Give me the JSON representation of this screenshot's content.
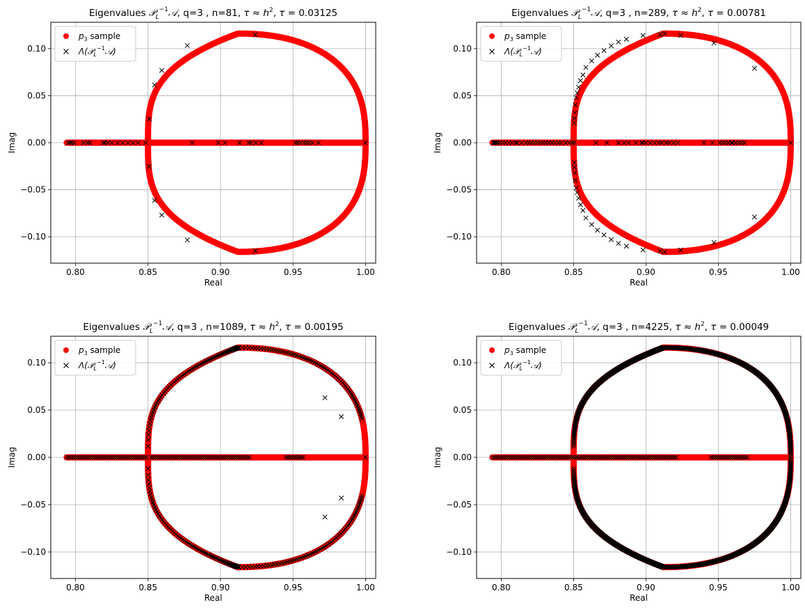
{
  "chart_data": [
    {
      "type": "scatter",
      "title": "Eigenvalues P_L^{-1}A, q=3 , n=81, τ≈h², τ=0.03125",
      "title_parts": {
        "pre": "Eigenvalues ",
        "mid": ", q=3 , n=81, ",
        "post": " = 0.03125"
      },
      "xlabel": "Real",
      "ylabel": "Imag",
      "xlim": [
        0.783,
        1.007
      ],
      "ylim": [
        -0.128,
        0.128
      ],
      "xticks": [
        0.8,
        0.85,
        0.9,
        0.95,
        1.0
      ],
      "xtick_labels": [
        "0.80",
        "0.85",
        "0.90",
        "0.95",
        "1.00"
      ],
      "yticks": [
        -0.1,
        -0.05,
        0.0,
        0.05,
        0.1
      ],
      "ytick_labels": [
        "−0.10",
        "−0.05",
        "0.00",
        "0.05",
        "0.10"
      ],
      "grid": true,
      "legend_position": "top-left",
      "series": [
        {
          "name": "p3 sample",
          "marker": "o",
          "color": "#ff0000",
          "curve": "closed loop from (0.85, 0) through (0.912, ±0.116) to (1.00, 0), plus real segment [0.794, 1.00]",
          "real_segment": [
            0.794,
            1.0
          ],
          "loop": {
            "left": 0.85,
            "right": 1.0,
            "peak_real": 0.912,
            "peak_imag": 0.116
          }
        },
        {
          "name": "Λ(P_L^{-1}A)",
          "marker": "x",
          "color": "#000000",
          "points": [
            [
              0.795,
              0
            ],
            [
              0.7963,
              0
            ],
            [
              0.7975,
              0
            ],
            [
              0.7993,
              0
            ],
            [
              0.8056,
              0
            ],
            [
              0.8082,
              0
            ],
            [
              0.8101,
              0
            ],
            [
              0.8192,
              0
            ],
            [
              0.8204,
              0
            ],
            [
              0.8222,
              0
            ],
            [
              0.825,
              0
            ],
            [
              0.8291,
              0
            ],
            [
              0.8325,
              0
            ],
            [
              0.8362,
              0
            ],
            [
              0.8395,
              0
            ],
            [
              0.8432,
              0
            ],
            [
              0.8485,
              0
            ],
            [
              0.8805,
              0
            ],
            [
              0.8985,
              0
            ],
            [
              0.903,
              0
            ],
            [
              0.9132,
              0
            ],
            [
              0.9194,
              0
            ],
            [
              0.921,
              0
            ],
            [
              0.9242,
              0
            ],
            [
              0.9281,
              0
            ],
            [
              0.9516,
              0
            ],
            [
              0.9531,
              0
            ],
            [
              0.9551,
              0
            ],
            [
              0.9575,
              0
            ],
            [
              0.9593,
              0
            ],
            [
              0.9612,
              0
            ],
            [
              0.9635,
              0
            ],
            [
              0.9675,
              0
            ],
            [
              1.0,
              0
            ],
            [
              0.8508,
              0.0252
            ],
            [
              0.8545,
              0.0614
            ],
            [
              0.8595,
              0.0769
            ],
            [
              0.8771,
              0.1033
            ],
            [
              0.924,
              0.1148
            ],
            [
              0.8508,
              -0.0252
            ],
            [
              0.8545,
              -0.0614
            ],
            [
              0.8595,
              -0.0769
            ],
            [
              0.8771,
              -0.1033
            ],
            [
              0.924,
              -0.1148
            ]
          ]
        }
      ]
    },
    {
      "type": "scatter",
      "title": "Eigenvalues P_L^{-1}A, q=3 , n=289, τ≈h², τ=0.00781",
      "title_parts": {
        "pre": "Eigenvalues ",
        "mid": ", q=3 , n=289, ",
        "post": " = 0.00781"
      },
      "xlabel": "Real",
      "ylabel": "Imag",
      "xlim": [
        0.783,
        1.007
      ],
      "ylim": [
        -0.128,
        0.128
      ],
      "xticks": [
        0.8,
        0.85,
        0.9,
        0.95,
        1.0
      ],
      "xtick_labels": [
        "0.80",
        "0.85",
        "0.90",
        "0.95",
        "1.00"
      ],
      "yticks": [
        -0.1,
        -0.05,
        0.0,
        0.05,
        0.1
      ],
      "ytick_labels": [
        "−0.10",
        "−0.05",
        "0.00",
        "0.05",
        "0.10"
      ],
      "grid": true,
      "legend_position": "top-left",
      "series": [
        {
          "name": "p3 sample",
          "marker": "o",
          "color": "#ff0000",
          "real_segment": [
            0.794,
            1.0
          ],
          "loop": {
            "left": 0.85,
            "right": 1.0,
            "peak_real": 0.912,
            "peak_imag": 0.116
          }
        },
        {
          "name": "Λ(P_L^{-1}A)",
          "marker": "x",
          "color": "#000000",
          "real_points": [
            0.7945,
            0.7952,
            0.796,
            0.7968,
            0.7975,
            0.799,
            0.801,
            0.803,
            0.8055,
            0.8075,
            0.81,
            0.811,
            0.814,
            0.817,
            0.819,
            0.821,
            0.823,
            0.825,
            0.827,
            0.829,
            0.831,
            0.833,
            0.835,
            0.837,
            0.8395,
            0.8415,
            0.8445,
            0.847,
            0.849,
            0.8505,
            0.8655,
            0.873,
            0.881,
            0.885,
            0.888,
            0.893,
            0.897,
            0.898,
            0.9,
            0.903,
            0.906,
            0.909,
            0.911,
            0.914,
            0.916,
            0.919,
            0.922,
            0.94,
            0.946,
            0.951,
            0.953,
            0.955,
            0.957,
            0.959,
            0.96,
            0.962,
            0.964,
            0.966,
            0.968,
            1.0
          ],
          "loop_points": [
            [
              0.8505,
              0.021
            ],
            [
              0.8506,
              0.026
            ],
            [
              0.8509,
              0.032
            ],
            [
              0.8512,
              0.04
            ],
            [
              0.8518,
              0.048
            ],
            [
              0.8525,
              0.053
            ],
            [
              0.8535,
              0.059
            ],
            [
              0.8548,
              0.066
            ],
            [
              0.8565,
              0.072
            ],
            [
              0.8585,
              0.08
            ],
            [
              0.8625,
              0.087
            ],
            [
              0.8665,
              0.093
            ],
            [
              0.871,
              0.098
            ],
            [
              0.876,
              0.103
            ],
            [
              0.881,
              0.107
            ],
            [
              0.8865,
              0.11
            ],
            [
              0.898,
              0.114
            ],
            [
              0.91,
              0.115
            ],
            [
              0.913,
              0.116
            ],
            [
              0.924,
              0.114
            ],
            [
              0.947,
              0.106
            ],
            [
              0.975,
              0.079
            ],
            [
              0.8505,
              -0.021
            ],
            [
              0.8506,
              -0.026
            ],
            [
              0.8509,
              -0.032
            ],
            [
              0.8512,
              -0.04
            ],
            [
              0.8518,
              -0.048
            ],
            [
              0.8525,
              -0.053
            ],
            [
              0.8535,
              -0.059
            ],
            [
              0.8548,
              -0.066
            ],
            [
              0.8565,
              -0.072
            ],
            [
              0.8585,
              -0.08
            ],
            [
              0.8625,
              -0.087
            ],
            [
              0.8665,
              -0.093
            ],
            [
              0.871,
              -0.098
            ],
            [
              0.876,
              -0.103
            ],
            [
              0.881,
              -0.107
            ],
            [
              0.8865,
              -0.11
            ],
            [
              0.898,
              -0.114
            ],
            [
              0.91,
              -0.115
            ],
            [
              0.913,
              -0.116
            ],
            [
              0.924,
              -0.114
            ],
            [
              0.947,
              -0.106
            ],
            [
              0.975,
              -0.079
            ]
          ]
        }
      ]
    },
    {
      "type": "scatter",
      "title": "Eigenvalues P_L^{-1}A, q=3 , n=1089, τ≈h², τ=0.00195",
      "title_parts": {
        "pre": "Eigenvalues ",
        "mid": ", q=3 , n=1089, ",
        "post": " = 0.00195"
      },
      "xlabel": "Real",
      "ylabel": "Imag",
      "xlim": [
        0.783,
        1.007
      ],
      "ylim": [
        -0.128,
        0.128
      ],
      "xticks": [
        0.8,
        0.85,
        0.9,
        0.95,
        1.0
      ],
      "xtick_labels": [
        "0.80",
        "0.85",
        "0.90",
        "0.95",
        "1.00"
      ],
      "yticks": [
        -0.1,
        -0.05,
        0.0,
        0.05,
        0.1
      ],
      "ytick_labels": [
        "−0.10",
        "−0.05",
        "0.00",
        "0.05",
        "0.10"
      ],
      "grid": true,
      "legend_position": "top-left",
      "series": [
        {
          "name": "p3 sample",
          "marker": "o",
          "color": "#ff0000",
          "real_segment": [
            0.794,
            1.0
          ],
          "loop": {
            "left": 0.85,
            "right": 1.0,
            "peak_real": 0.912,
            "peak_imag": 0.116
          }
        },
        {
          "name": "Λ(P_L^{-1}A)",
          "marker": "x",
          "color": "#000000",
          "dense_real_ranges": [
            [
              0.794,
              0.849
            ],
            [
              0.852,
              0.92
            ],
            [
              0.945,
              0.957
            ]
          ],
          "loop_density": 140,
          "loop_param_max": 0.92,
          "extra_points": [
            [
              1.0,
              0
            ],
            [
              0.9833,
              0.043
            ],
            [
              0.9833,
              -0.043
            ],
            [
              0.972,
              0.063
            ],
            [
              0.972,
              -0.063
            ]
          ]
        }
      ]
    },
    {
      "type": "scatter",
      "title": "Eigenvalues P_L^{-1}A, q=3 , n=4225, τ≈h², τ=0.00049",
      "title_parts": {
        "pre": "Eigenvalues ",
        "mid": ", q=3 , n=4225, ",
        "post": " = 0.00049"
      },
      "xlabel": "Real",
      "ylabel": "Imag",
      "xlim": [
        0.783,
        1.007
      ],
      "ylim": [
        -0.128,
        0.128
      ],
      "xticks": [
        0.8,
        0.85,
        0.9,
        0.95,
        1.0
      ],
      "xtick_labels": [
        "0.80",
        "0.85",
        "0.90",
        "0.95",
        "1.00"
      ],
      "yticks": [
        -0.1,
        -0.05,
        0.0,
        0.05,
        0.1
      ],
      "ytick_labels": [
        "−0.10",
        "−0.05",
        "0.00",
        "0.05",
        "0.10"
      ],
      "grid": true,
      "legend_position": "top-left",
      "series": [
        {
          "name": "p3 sample",
          "marker": "o",
          "color": "#ff0000",
          "real_segment": [
            0.794,
            1.0
          ],
          "loop": {
            "left": 0.85,
            "right": 1.0,
            "peak_real": 0.912,
            "peak_imag": 0.116
          }
        },
        {
          "name": "Λ(P_L^{-1}A)",
          "marker": "x",
          "color": "#000000",
          "dense_real_ranges": [
            [
              0.794,
              0.921
            ],
            [
              0.945,
              0.97
            ]
          ],
          "loop_density": 480,
          "loop_param_max": 1.0,
          "extra_points": [
            [
              1.0,
              0
            ]
          ]
        }
      ]
    }
  ],
  "legend": {
    "sample_label_sub": "3",
    "sample_label_text": " sample"
  }
}
